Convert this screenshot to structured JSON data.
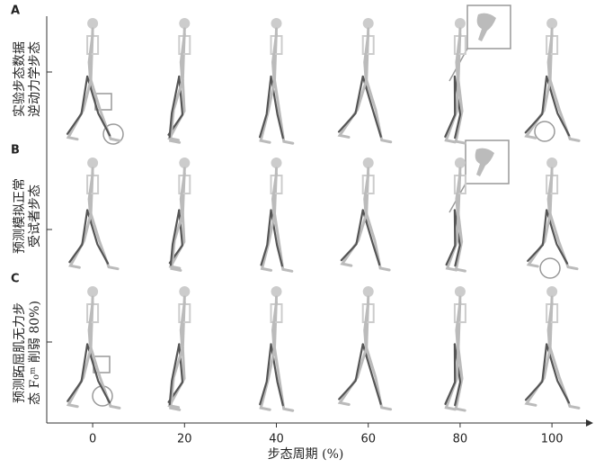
{
  "chart_data": {
    "type": "skeleton-panels",
    "panels": [
      {
        "letter": "A",
        "label_lines": [
          "实验步态数据",
          "逆动力学步态"
        ]
      },
      {
        "letter": "B",
        "label_lines": [
          "预测模拟正常",
          "受试者步态"
        ]
      },
      {
        "letter": "C",
        "label_lines": [
          "预测跖屈肌无力步",
          "态 F₀ᵐ 削弱 80%)"
        ]
      }
    ],
    "xlim": [
      -10,
      108
    ],
    "xticks": [
      0,
      20,
      40,
      60,
      80,
      100
    ],
    "xlabel": "步态周期 (%)"
  }
}
